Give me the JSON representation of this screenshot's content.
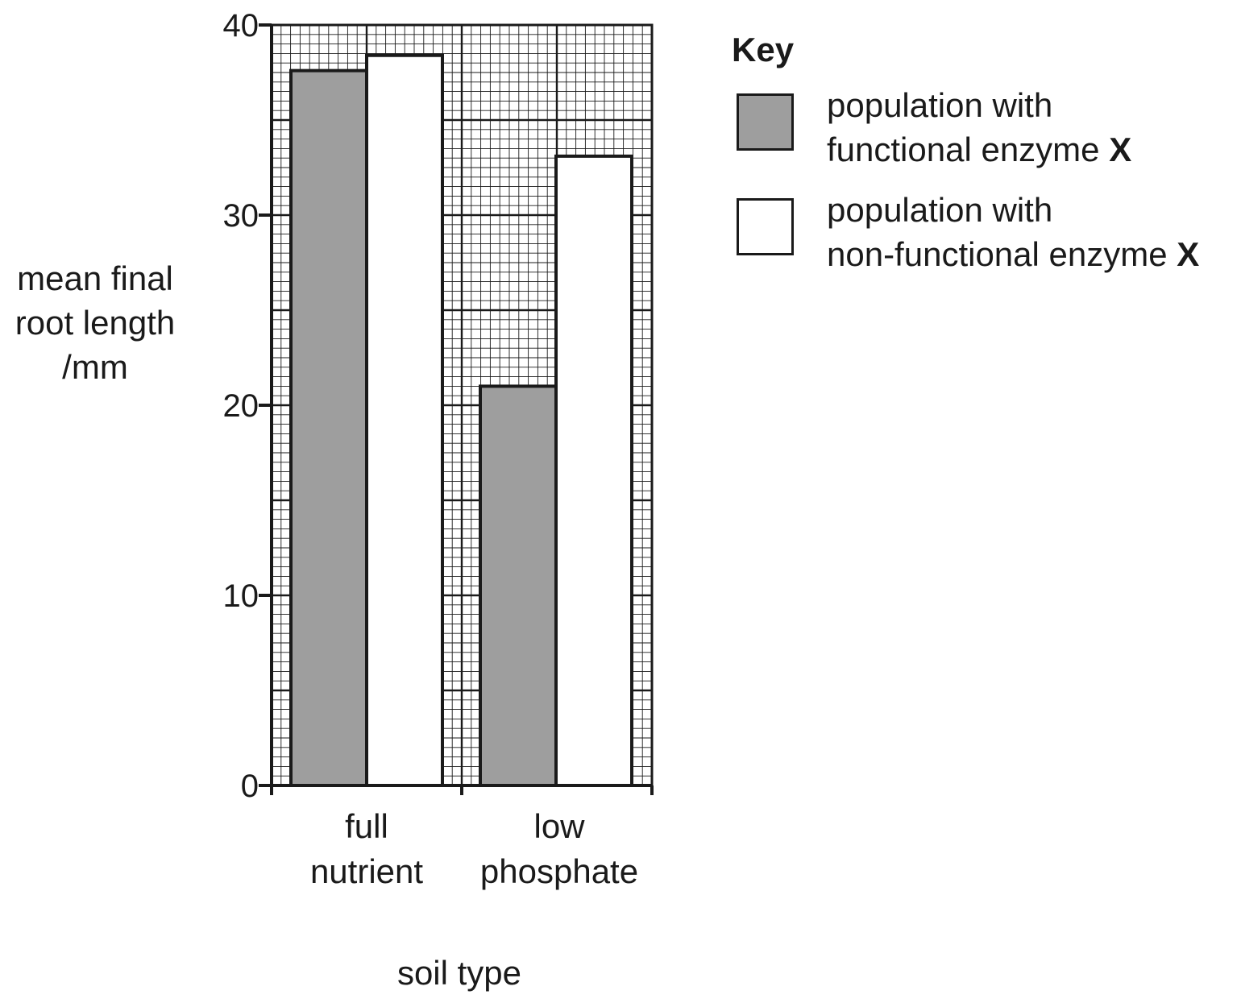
{
  "chart_data": {
    "type": "bar",
    "categories": [
      [
        "full",
        "nutrient"
      ],
      [
        "low",
        "phosphate"
      ]
    ],
    "series": [
      {
        "name": [
          "population with",
          "functional enzyme ",
          "X"
        ],
        "color": "#9e9e9e",
        "values": [
          37.6,
          21.0
        ]
      },
      {
        "name": [
          "population with",
          "non-functional enzyme ",
          "X"
        ],
        "color": "#ffffff",
        "values": [
          38.4,
          33.1
        ]
      }
    ],
    "xlabel": "soil type",
    "ylabel": [
      "mean final",
      "root length",
      "/mm"
    ],
    "ylim": [
      0,
      40
    ],
    "yticks": [
      "0",
      "10",
      "20",
      "30",
      "40"
    ],
    "grid": true,
    "legend_title": "Key",
    "legend_position": "right"
  }
}
